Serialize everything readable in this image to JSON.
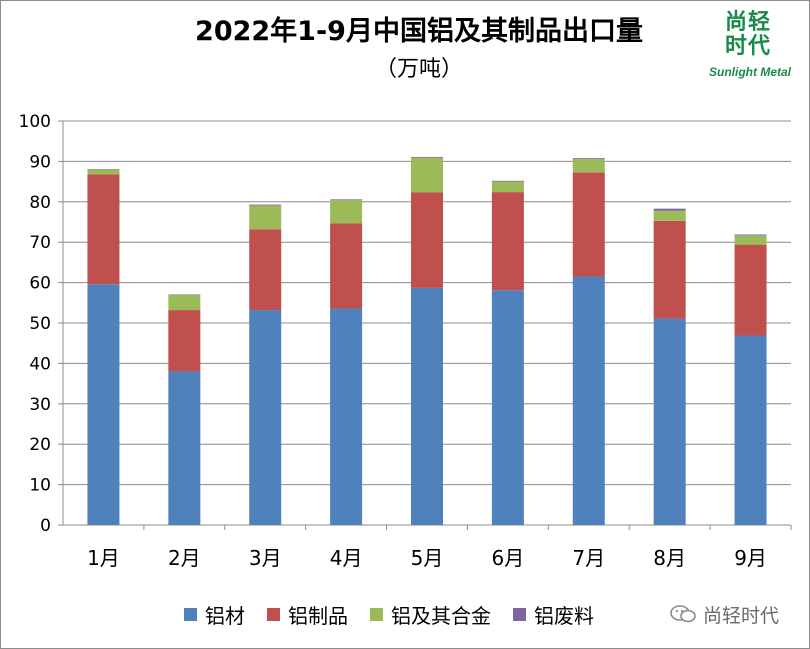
{
  "title": "2022年1-9月中国铝及其制品出口量",
  "subtitle": "（万吨）",
  "logo": {
    "chars": "尚轻时代",
    "wordmark": "Sunlight Metal",
    "color": "#1a8a4a"
  },
  "watermark": {
    "text": "尚轻时代",
    "icon": "wechat-icon"
  },
  "chart_data": {
    "type": "bar",
    "stacked": true,
    "categories": [
      "1月",
      "2月",
      "3月",
      "4月",
      "5月",
      "6月",
      "7月",
      "8月",
      "9月"
    ],
    "ylim": [
      0,
      100
    ],
    "yticks": [
      0,
      10,
      20,
      30,
      40,
      50,
      60,
      70,
      80,
      90,
      100
    ],
    "grid": true,
    "legend_position": "bottom",
    "series": [
      {
        "name": "铝材",
        "color": "#4f81bd",
        "values": [
          59.6,
          38.0,
          53.2,
          53.6,
          58.7,
          58.1,
          61.5,
          51.1,
          46.9
        ]
      },
      {
        "name": "铝制品",
        "color": "#c0504d",
        "values": [
          27.2,
          15.2,
          20.0,
          21.1,
          23.6,
          24.3,
          25.8,
          24.2,
          22.5
        ]
      },
      {
        "name": "铝及其合金",
        "color": "#9bbb59",
        "values": [
          1.2,
          3.8,
          5.9,
          5.7,
          8.6,
          2.6,
          3.3,
          2.5,
          2.3
        ]
      },
      {
        "name": "铝废料",
        "color": "#8064a2",
        "values": [
          0.1,
          0.1,
          0.2,
          0.2,
          0.2,
          0.2,
          0.2,
          0.5,
          0.2
        ]
      }
    ]
  }
}
